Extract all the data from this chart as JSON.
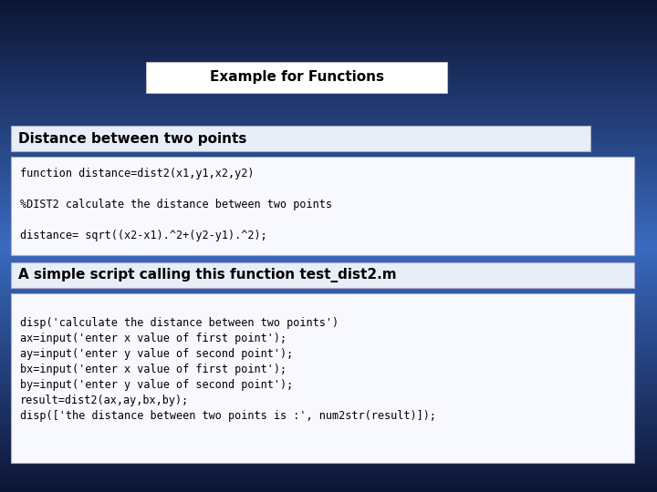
{
  "title": "Example for Functions",
  "title_box_color": "#ffffff",
  "title_text_color": "#000000",
  "title_fontsize": 11,
  "section1_label": "Distance between two points",
  "section1_box_color": "#e8eef8",
  "section1_label_color": "#000000",
  "section1_label_fontsize": 11,
  "code_box1_color": "#f8f8ff",
  "code1_lines": [
    "function distance=dist2(x1,y1,x2,y2)",
    "",
    "%DIST2 calculate the distance between two points",
    "",
    "distance= sqrt((x2-x1).^2+(y2-y1).^2);"
  ],
  "section2_label": "A simple script calling this function test_dist2.m",
  "section2_box_color": "#e8eef8",
  "section2_label_color": "#000000",
  "section2_label_fontsize": 11,
  "code_box2_color": "#f8f8ff",
  "code2_lines": [
    "disp('calculate the distance between two points')",
    "ax=input('enter x value of first point');",
    "ay=input('enter y value of second point');",
    "bx=input('enter x value of first point');",
    "by=input('enter y value of second point');",
    "result=dist2(ax,ay,bx,by);",
    "disp(['the distance between two points is :', num2str(result)]);"
  ],
  "code_fontsize": 8.5,
  "code_font_color": "#000000",
  "bg_top": "#0d1535",
  "bg_mid": "#3a6abf",
  "bg_bot": "#0d1535"
}
